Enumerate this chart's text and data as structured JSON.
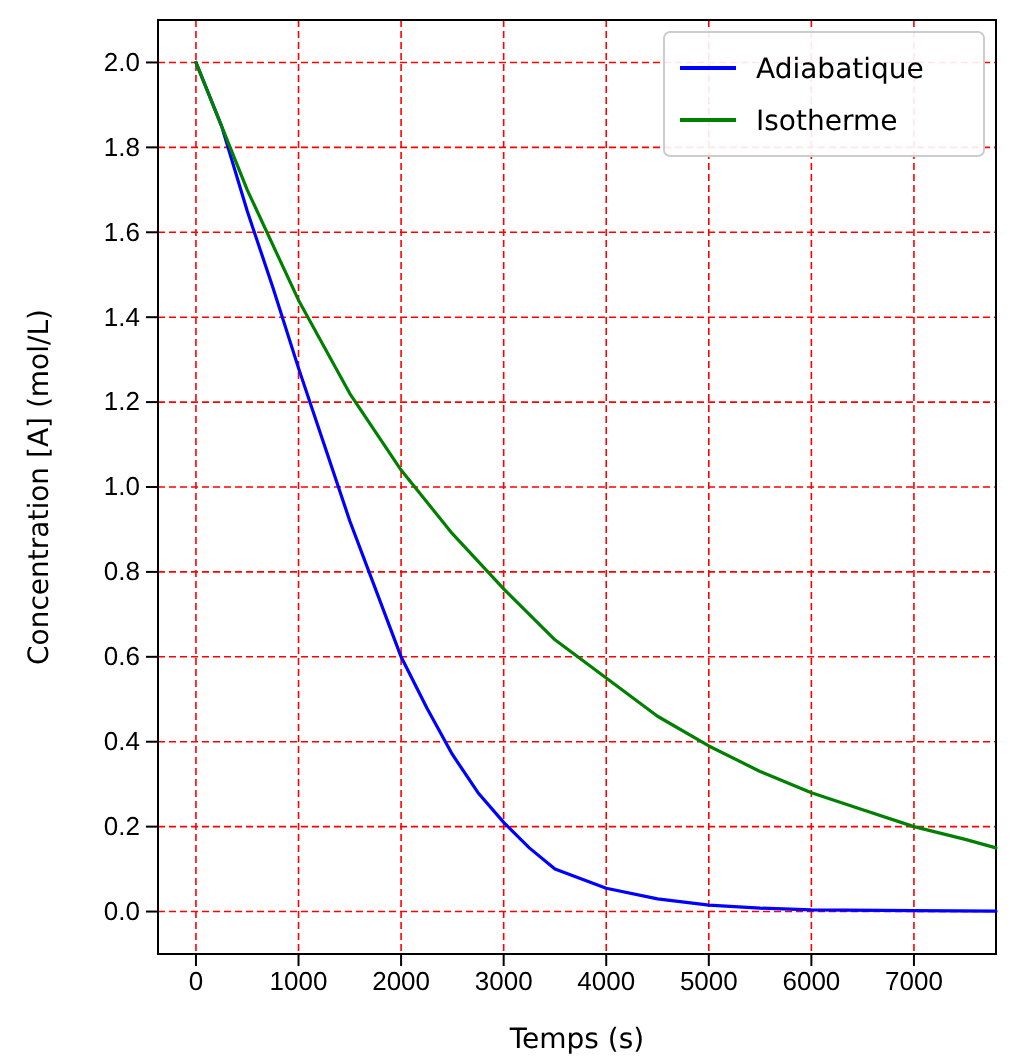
{
  "chart_data": {
    "type": "line",
    "xlabel": "Temps (s)",
    "ylabel": "Concentration [A] (mol/L)",
    "xlim": [
      -370,
      7800
    ],
    "ylim": [
      -0.1,
      2.1
    ],
    "xticks": [
      0,
      1000,
      2000,
      3000,
      4000,
      5000,
      6000,
      7000
    ],
    "yticks": [
      {
        "value": 0,
        "label": "0.0"
      },
      {
        "value": 0.2,
        "label": "0.2"
      },
      {
        "value": 0.4,
        "label": "0.4"
      },
      {
        "value": 0.6,
        "label": "0.6"
      },
      {
        "value": 0.8,
        "label": "0.8"
      },
      {
        "value": 1,
        "label": "1.0"
      },
      {
        "value": 1.2,
        "label": "1.2"
      },
      {
        "value": 1.4,
        "label": "1.4"
      },
      {
        "value": 1.6,
        "label": "1.6"
      },
      {
        "value": 1.8,
        "label": "1.8"
      },
      {
        "value": 2,
        "label": "2.0"
      }
    ],
    "grid": true,
    "legend": "top right",
    "marker": "none",
    "line_style": "solid",
    "series": [
      {
        "name": "Adiabatique",
        "color": "#0000ff",
        "x": [
          0,
          250,
          500,
          750,
          1000,
          1250,
          1500,
          1750,
          2000,
          2250,
          2500,
          2750,
          3000,
          3250,
          3500,
          4000,
          4500,
          5000,
          5500,
          6000,
          7000,
          7800
        ],
        "values": [
          2.0,
          1.85,
          1.65,
          1.47,
          1.28,
          1.1,
          0.92,
          0.76,
          0.6,
          0.48,
          0.37,
          0.28,
          0.21,
          0.15,
          0.1,
          0.055,
          0.03,
          0.015,
          0.008,
          0.004,
          0.002,
          0.001
        ]
      },
      {
        "name": "Isotherme",
        "color": "#008000",
        "x": [
          0,
          500,
          1000,
          1500,
          2000,
          2500,
          3000,
          3500,
          4000,
          4500,
          5000,
          5500,
          6000,
          6500,
          7000,
          7500,
          7800
        ],
        "values": [
          2.0,
          1.7,
          1.44,
          1.22,
          1.04,
          0.89,
          0.76,
          0.64,
          0.55,
          0.46,
          0.39,
          0.33,
          0.28,
          0.24,
          0.2,
          0.17,
          0.15
        ]
      }
    ]
  }
}
